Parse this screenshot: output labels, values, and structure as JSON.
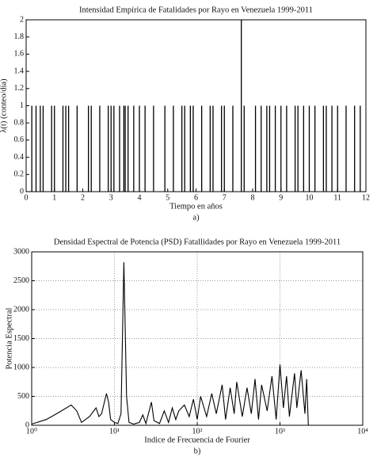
{
  "chart_data": [
    {
      "type": "stem",
      "title": "Intensidad Empírica de Fatalidades por Rayo en Venezuela 1999-2011",
      "xlabel": "Tiempo en años",
      "ylabel": "λ(t) (conteo/día)",
      "caption": "a)",
      "x": [
        0.2,
        0.35,
        0.5,
        0.6,
        0.9,
        1.0,
        1.3,
        1.4,
        1.5,
        1.8,
        2.2,
        2.3,
        2.6,
        2.9,
        3.0,
        3.1,
        3.3,
        3.45,
        3.5,
        3.6,
        3.8,
        4.0,
        4.2,
        4.5,
        4.9,
        5.2,
        5.5,
        5.6,
        5.8,
        5.9,
        6.2,
        6.5,
        6.6,
        6.9,
        7.0,
        7.3,
        7.6,
        7.7,
        8.1,
        8.3,
        8.5,
        8.6,
        8.8,
        9.0,
        9.2,
        9.5,
        9.6,
        9.8,
        10.0,
        10.2,
        10.5,
        10.6,
        10.8,
        11.0,
        11.3,
        11.6,
        11.8
      ],
      "values": [
        1,
        1,
        1,
        1,
        1,
        1,
        1,
        1,
        1,
        1,
        1,
        1,
        1,
        1,
        1,
        1,
        1,
        1,
        1,
        1,
        1,
        1,
        1,
        1,
        1,
        1,
        1,
        1,
        1,
        1,
        1,
        1,
        1,
        1,
        1,
        1,
        2,
        1,
        1,
        1,
        1,
        1,
        1,
        1,
        1,
        1,
        1,
        1,
        1,
        1,
        1,
        1,
        1,
        1,
        1,
        1,
        1
      ],
      "color": "#000000",
      "xlim": [
        0,
        12
      ],
      "xticks": [
        0,
        1,
        2,
        3,
        4,
        5,
        6,
        7,
        8,
        9,
        10,
        11,
        12
      ],
      "ylim": [
        0,
        2
      ],
      "yticks": [
        0,
        0.2,
        0.4,
        0.6,
        0.8,
        1,
        1.2,
        1.4,
        1.6,
        1.8,
        2
      ],
      "grid": false
    },
    {
      "type": "line",
      "title": "Densidad Espectral de Potencia (PSD) Fatallidades por Rayo en Venezuela 1999-2011",
      "xlabel": "Indice de Frecuencia de Fourier",
      "ylabel": "Potencia Espectral",
      "caption": "b)",
      "x": [
        1,
        1.5,
        2,
        3,
        3.5,
        4,
        5,
        6,
        6.5,
        7,
        8,
        8.5,
        9,
        10,
        11,
        12,
        13,
        14,
        15,
        17,
        20,
        22,
        24,
        28,
        30,
        35,
        40,
        45,
        50,
        55,
        60,
        70,
        80,
        90,
        100,
        110,
        130,
        150,
        170,
        200,
        220,
        250,
        280,
        300,
        350,
        400,
        450,
        500,
        550,
        600,
        700,
        800,
        900,
        1000,
        1100,
        1200,
        1300,
        1500,
        1600,
        1800,
        2000,
        2100,
        2200
      ],
      "values": [
        20,
        100,
        200,
        350,
        250,
        50,
        150,
        300,
        150,
        200,
        550,
        400,
        100,
        50,
        30,
        200,
        2820,
        500,
        50,
        20,
        50,
        180,
        30,
        400,
        80,
        30,
        250,
        50,
        300,
        100,
        250,
        350,
        150,
        450,
        100,
        500,
        150,
        550,
        200,
        700,
        100,
        650,
        200,
        750,
        150,
        650,
        200,
        800,
        100,
        700,
        250,
        850,
        100,
        1050,
        300,
        850,
        150,
        900,
        300,
        950,
        200,
        800,
        0
      ],
      "color": "#000000",
      "log_x": true,
      "xlim": [
        1,
        10000
      ],
      "xticks": [
        {
          "value": 1,
          "label": "10⁰"
        },
        {
          "value": 10,
          "label": "10¹"
        },
        {
          "value": 100,
          "label": "10²"
        },
        {
          "value": 1000,
          "label": "10³"
        },
        {
          "value": 10000,
          "label": "10⁴"
        }
      ],
      "ylim": [
        0,
        3000
      ],
      "yticks": [
        0,
        500,
        1000,
        1500,
        2000,
        2500,
        3000
      ],
      "grid": true
    }
  ]
}
